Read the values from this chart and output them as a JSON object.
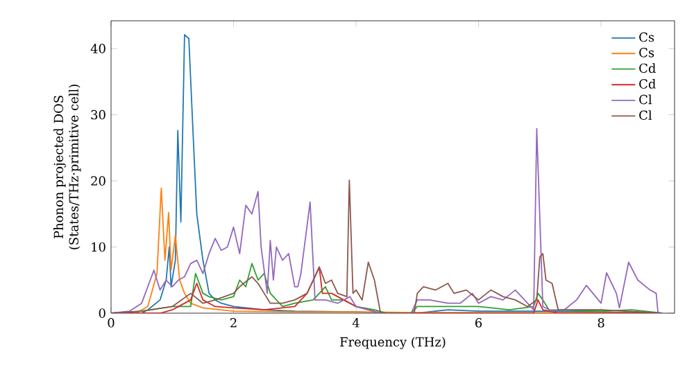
{
  "chart_data": {
    "type": "line",
    "xlabel": "Frequency (THz)",
    "ylabel": "Phonon projected DOS (States/THz·primitive cell)",
    "xlim": [
      0,
      9.2
    ],
    "ylim": [
      0,
      44.2
    ],
    "xticks": [
      0,
      2,
      4,
      6,
      8
    ],
    "yticks": [
      0,
      10,
      20,
      30,
      40
    ],
    "grid": false,
    "legend": "top right",
    "marker": "none",
    "line_style": "solid",
    "series": [
      {
        "name": "Cs",
        "color": "#1f77b4",
        "x": [
          0,
          0.5,
          0.6,
          0.8,
          0.9,
          0.95,
          0.98,
          1.05,
          1.09,
          1.14,
          1.2,
          1.27,
          1.35,
          1.4,
          1.5,
          1.6,
          1.7,
          1.8,
          2.0,
          2.5,
          3.0,
          4.0,
          4.6,
          5.0,
          5.5,
          6.0,
          7.0,
          8.0,
          9.0
        ],
        "values": [
          0,
          0,
          0.5,
          2,
          5,
          10,
          4,
          8,
          27.6,
          13.8,
          42.1,
          41.5,
          25,
          15,
          8,
          3,
          2,
          1.5,
          1,
          0.5,
          0.3,
          0.2,
          0,
          0,
          0.5,
          0.3,
          0.3,
          0.2,
          0
        ]
      },
      {
        "name": "Cs",
        "color": "#ff7f0e",
        "x": [
          0,
          0.4,
          0.6,
          0.75,
          0.82,
          0.88,
          0.94,
          0.98,
          1.05,
          1.12,
          1.2,
          1.3,
          1.5,
          2.0,
          3.0,
          4.0,
          5.0,
          6.0,
          7.0,
          8.0,
          9.0
        ],
        "values": [
          0,
          0,
          1,
          6,
          18.9,
          8,
          15.2,
          6.5,
          11.7,
          5,
          3,
          1.5,
          0.8,
          0.3,
          0.2,
          0.2,
          0.1,
          0.1,
          0.1,
          0.1,
          0
        ]
      },
      {
        "name": "Cd",
        "color": "#2ca02c",
        "x": [
          0,
          0.5,
          1.0,
          1.3,
          1.38,
          1.5,
          1.6,
          1.8,
          2.0,
          2.1,
          2.2,
          2.3,
          2.4,
          2.5,
          2.6,
          2.8,
          3.0,
          3.3,
          3.5,
          3.6,
          3.8,
          4.0,
          4.3,
          4.5,
          4.9,
          5.0,
          5.5,
          6.0,
          6.5,
          6.9,
          6.97,
          7.05,
          7.15,
          8.0,
          8.5,
          9.0
        ],
        "values": [
          0,
          0.3,
          1,
          1,
          6,
          3,
          2.5,
          2,
          2.5,
          5,
          4,
          7.5,
          5,
          6,
          3,
          1,
          1.5,
          2,
          4,
          2,
          2,
          1,
          0.5,
          0,
          0,
          1,
          1,
          1,
          0.5,
          1,
          3,
          2,
          0.5,
          0.3,
          0.5,
          0
        ]
      },
      {
        "name": "Cd",
        "color": "#d62728",
        "x": [
          0,
          0.8,
          1.0,
          1.3,
          1.4,
          1.5,
          1.7,
          2.0,
          2.5,
          3.0,
          3.2,
          3.4,
          3.45,
          3.6,
          3.8,
          4.0,
          4.2,
          4.4,
          6.9,
          6.97,
          7.05,
          7.3,
          9.0
        ],
        "values": [
          0,
          0,
          0.5,
          2,
          4.5,
          2,
          1,
          0.8,
          0.5,
          1,
          3,
          6.9,
          3,
          3,
          2,
          1,
          0.5,
          0,
          0,
          2,
          0.5,
          0,
          0
        ]
      },
      {
        "name": "Cl",
        "color": "#9467bd",
        "x": [
          0,
          0.3,
          0.5,
          0.7,
          0.8,
          0.9,
          1.0,
          1.1,
          1.2,
          1.3,
          1.4,
          1.5,
          1.6,
          1.7,
          1.8,
          1.9,
          2.0,
          2.1,
          2.2,
          2.3,
          2.4,
          2.45,
          2.55,
          2.6,
          2.65,
          2.7,
          2.8,
          2.9,
          3.0,
          3.05,
          3.1,
          3.25,
          3.33,
          3.5,
          3.7,
          3.9,
          4.0,
          4.2,
          4.4,
          4.9,
          5.0,
          5.2,
          5.5,
          5.7,
          5.9,
          6.0,
          6.2,
          6.4,
          6.6,
          6.8,
          6.9,
          6.95,
          7.05,
          7.2,
          7.4,
          7.6,
          7.76,
          8.0,
          8.09,
          8.25,
          8.3,
          8.45,
          8.6,
          8.8,
          8.9,
          8.93,
          9.0
        ],
        "values": [
          0,
          0.3,
          1.5,
          6.5,
          3.5,
          5,
          4,
          5,
          5.5,
          7.5,
          8,
          6,
          9,
          11.3,
          9.5,
          10,
          13,
          9,
          16.3,
          15,
          18.4,
          10,
          3,
          11,
          5,
          10,
          8,
          9,
          4,
          4,
          6,
          16.8,
          2,
          2,
          1.5,
          2.5,
          1,
          0.5,
          0,
          0,
          2,
          2,
          1.5,
          1.5,
          3,
          1.5,
          2.5,
          2,
          3.5,
          1.5,
          0.5,
          27.9,
          1,
          0.3,
          0.5,
          2,
          4.2,
          1.5,
          6.1,
          3,
          0.8,
          7.7,
          5,
          3.5,
          3,
          0,
          0
        ]
      },
      {
        "name": "Cl",
        "color": "#8c564b",
        "x": [
          0,
          0.5,
          1.0,
          1.3,
          1.5,
          1.7,
          2.0,
          2.1,
          2.3,
          2.4,
          2.5,
          2.6,
          2.8,
          3.0,
          3.2,
          3.3,
          3.4,
          3.5,
          3.6,
          3.7,
          3.85,
          3.89,
          3.95,
          4.0,
          4.1,
          4.2,
          4.3,
          4.4,
          4.95,
          5.0,
          5.1,
          5.3,
          5.5,
          5.6,
          5.8,
          6.0,
          6.2,
          6.4,
          6.6,
          6.8,
          6.95,
          7.0,
          7.05,
          7.1,
          7.2,
          7.3,
          8.0,
          9.0
        ],
        "values": [
          0,
          0.3,
          1,
          3,
          1.5,
          2,
          3,
          4,
          5.5,
          4.5,
          3,
          1.5,
          1.5,
          2,
          3,
          5,
          7,
          4.5,
          5,
          3,
          2.5,
          20.1,
          3,
          3.5,
          2,
          7.7,
          5,
          0,
          0,
          3,
          4,
          3.5,
          4.5,
          3,
          3.5,
          2,
          3.5,
          2.5,
          2,
          1,
          2,
          8.5,
          9,
          5,
          4.5,
          0.5,
          0.5,
          0
        ]
      }
    ]
  }
}
